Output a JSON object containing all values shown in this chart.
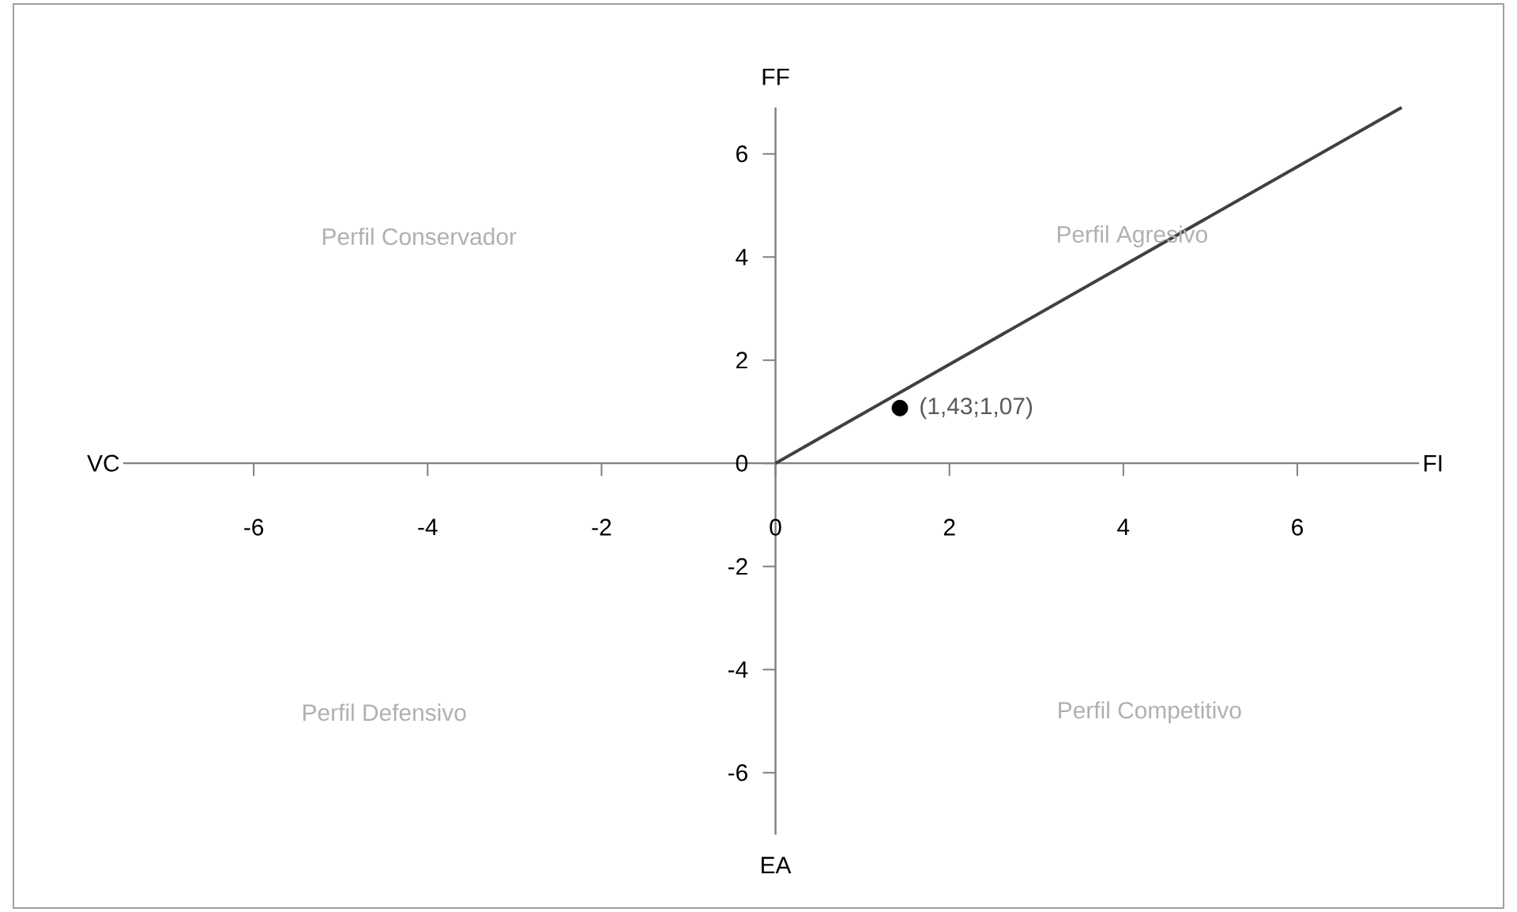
{
  "chart_data": {
    "type": "line",
    "xlabel": "FI",
    "ylabel": "FF",
    "xlim": [
      -7.5,
      7.4
    ],
    "ylim": [
      -7.2,
      6.9
    ],
    "xticks": [
      -6,
      -4,
      -2,
      0,
      2,
      4,
      6
    ],
    "yticks": [
      -6,
      -4,
      -2,
      0,
      2,
      4,
      6
    ],
    "grid": false,
    "series": [
      {
        "color": "#404040",
        "marker": "none",
        "x": [
          0,
          7.2
        ],
        "values": [
          0,
          6.9
        ]
      },
      {
        "type": "scatter",
        "color": "#000000",
        "marker": "circle",
        "x": [
          1.43
        ],
        "values": [
          1.07
        ],
        "value_labels": [
          "(1,43;1,07)"
        ]
      }
    ],
    "annotations": [
      "Perfil Conservador",
      "Perfil Agresivo",
      "Perfil Defensivo",
      "Perfil Competitivo",
      "VC",
      "EA"
    ]
  }
}
